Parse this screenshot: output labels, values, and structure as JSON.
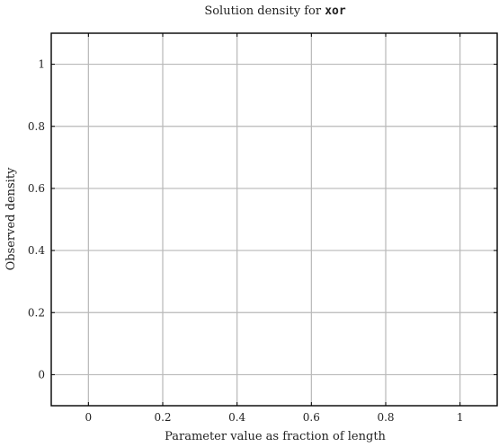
{
  "chart_data": {
    "type": "line",
    "title": {
      "prefix": "Solution density for ",
      "code": "xor"
    },
    "xlabel": "Parameter value as fraction of length",
    "ylabel": "Observed density",
    "xlim": [
      -0.1,
      1.1
    ],
    "ylim": [
      -0.1,
      1.1
    ],
    "xticks": [
      0,
      0.2,
      0.4,
      0.6,
      0.8,
      1
    ],
    "yticks": [
      0,
      0.2,
      0.4,
      0.6,
      0.8,
      1
    ],
    "xtick_labels": [
      "0",
      "0.2",
      "0.4",
      "0.6",
      "0.8",
      "1"
    ],
    "ytick_labels": [
      "0",
      "0.2",
      "0.4",
      "0.6",
      "0.8",
      "1"
    ],
    "grid": true,
    "series": []
  },
  "colors": {
    "grid": "#b8b8b8",
    "axes": "#000000",
    "text": "#222222"
  }
}
